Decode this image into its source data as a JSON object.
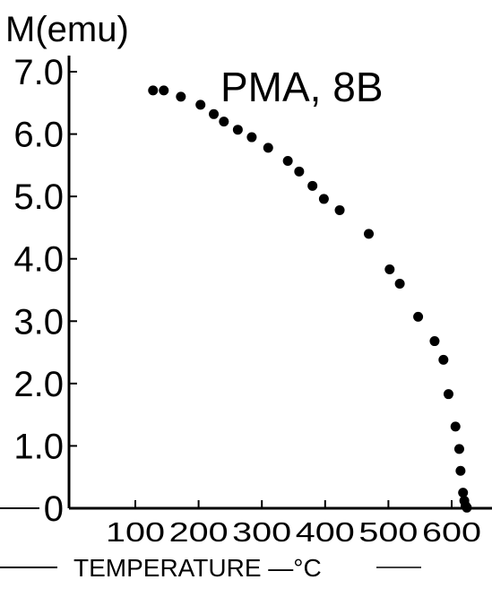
{
  "chart_data": {
    "type": "scatter",
    "title": "PMA, 8B",
    "ylabel": "M(emu)",
    "xlabel": "TEMPERATURE —°C",
    "xlim": [
      0,
      650
    ],
    "ylim": [
      0,
      7.0
    ],
    "x_ticks": [
      100,
      200,
      300,
      400,
      500,
      600
    ],
    "x_tick_labels": [
      "100",
      "200",
      "300",
      "400",
      "500",
      "600"
    ],
    "y_ticks": [
      0,
      1.0,
      2.0,
      3.0,
      4.0,
      5.0,
      6.0,
      7.0
    ],
    "y_tick_labels": [
      "0",
      "1.0",
      "2.0",
      "3.0",
      "4.0",
      "5.0",
      "6.0",
      "7.0"
    ],
    "grid": false,
    "legend": "none",
    "colors": {
      "background": "#ffffff",
      "ink": "#000000"
    },
    "series": [
      {
        "points": [
          {
            "x": 128,
            "y": 6.7
          },
          {
            "x": 145,
            "y": 6.7
          },
          {
            "x": 172,
            "y": 6.6
          },
          {
            "x": 203,
            "y": 6.47
          },
          {
            "x": 224,
            "y": 6.32
          },
          {
            "x": 240,
            "y": 6.2
          },
          {
            "x": 262,
            "y": 6.07
          },
          {
            "x": 284,
            "y": 5.95
          },
          {
            "x": 310,
            "y": 5.78
          },
          {
            "x": 341,
            "y": 5.57
          },
          {
            "x": 359,
            "y": 5.4
          },
          {
            "x": 380,
            "y": 5.17
          },
          {
            "x": 398,
            "y": 4.96
          },
          {
            "x": 423,
            "y": 4.78
          },
          {
            "x": 469,
            "y": 4.4
          },
          {
            "x": 502,
            "y": 3.83
          },
          {
            "x": 518,
            "y": 3.6
          },
          {
            "x": 547,
            "y": 3.07
          },
          {
            "x": 573,
            "y": 2.68
          },
          {
            "x": 587,
            "y": 2.38
          },
          {
            "x": 595,
            "y": 1.83
          },
          {
            "x": 606,
            "y": 1.31
          },
          {
            "x": 612,
            "y": 0.95
          },
          {
            "x": 614,
            "y": 0.6
          },
          {
            "x": 618,
            "y": 0.25
          },
          {
            "x": 620,
            "y": 0.12
          },
          {
            "x": 622,
            "y": 0.04
          },
          {
            "x": 624,
            "y": 0.01
          }
        ]
      }
    ]
  }
}
